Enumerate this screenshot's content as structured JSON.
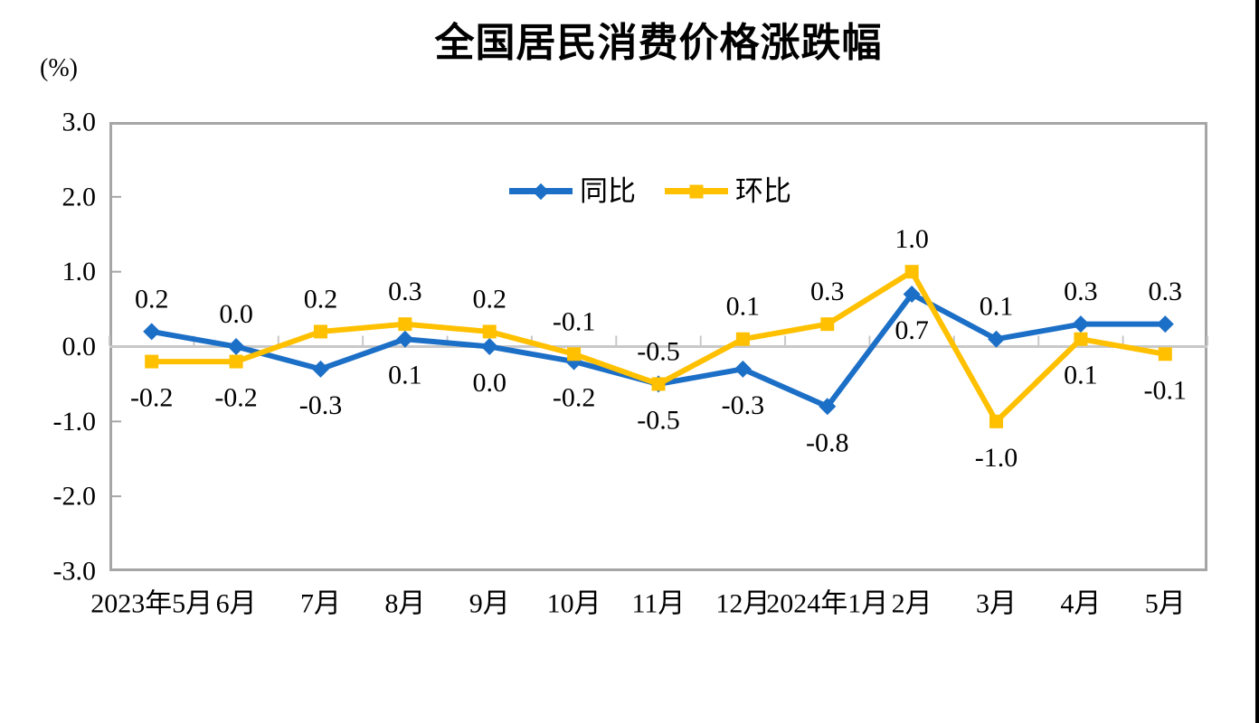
{
  "title": "全国居民消费价格涨跌幅",
  "y_axis_unit": "(%)",
  "colors": {
    "series_tongbi": "#1C6FC6",
    "series_huanbi": "#FFC000",
    "plot_border": "#A6A6A6",
    "zero_line": "#C8C8C8",
    "text": "#000000",
    "page_right_border": "#000000",
    "background": "#FFFFFF"
  },
  "chart_data": {
    "type": "line",
    "title": "全国居民消费价格涨跌幅",
    "ylabel": "(%)",
    "xlabel": "",
    "ylim": [
      -3.0,
      3.0
    ],
    "ytick_step": 1.0,
    "ytick_labels": [
      "3.0",
      "2.0",
      "1.0",
      "0.0",
      "-1.0",
      "-2.0",
      "-3.0"
    ],
    "grid": false,
    "legend_position": "top-center-inside",
    "categories": [
      "2023年5月",
      "6月",
      "7月",
      "8月",
      "9月",
      "10月",
      "11月",
      "12月",
      "2024年1月",
      "2月",
      "3月",
      "4月",
      "5月"
    ],
    "series": [
      {
        "name": "同比",
        "color": "#1C6FC6",
        "marker": "diamond",
        "values": [
          0.2,
          0.0,
          -0.3,
          0.1,
          0.0,
          -0.2,
          -0.5,
          -0.3,
          -0.8,
          0.7,
          0.1,
          0.3,
          0.3
        ],
        "labels": [
          "0.2",
          "0.0",
          "-0.3",
          "0.1",
          "0.0",
          "-0.2",
          "-0.5",
          "-0.3",
          "-0.8",
          "0.7",
          "0.1",
          "0.3",
          "0.3"
        ]
      },
      {
        "name": "环比",
        "color": "#FFC000",
        "marker": "square",
        "values": [
          -0.2,
          -0.2,
          0.2,
          0.3,
          0.2,
          -0.1,
          -0.5,
          0.1,
          0.3,
          1.0,
          -1.0,
          0.1,
          -0.1
        ],
        "labels": [
          "-0.2",
          "-0.2",
          "0.2",
          "0.3",
          "0.2",
          "-0.1",
          "-0.5",
          "0.1",
          "0.3",
          "1.0",
          "-1.0",
          "0.1",
          "-0.1"
        ]
      }
    ]
  }
}
